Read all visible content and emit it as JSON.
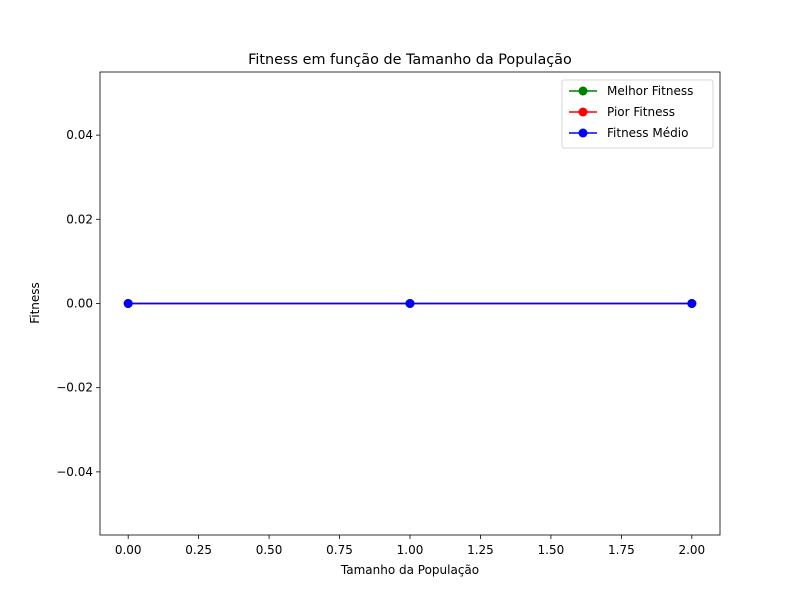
{
  "chart_data": {
    "type": "line",
    "title": "Fitness em função de Tamanho da População",
    "xlabel": "Tamanho da População",
    "ylabel": "Fitness",
    "xlim": [
      -0.1,
      2.1
    ],
    "ylim": [
      -0.055,
      0.055
    ],
    "x_ticks": [
      0.0,
      0.25,
      0.5,
      0.75,
      1.0,
      1.25,
      1.5,
      1.75,
      2.0
    ],
    "x_tick_labels": [
      "0.00",
      "0.25",
      "0.50",
      "0.75",
      "1.00",
      "1.25",
      "1.50",
      "1.75",
      "2.00"
    ],
    "y_ticks": [
      -0.04,
      -0.02,
      0.0,
      0.02,
      0.04
    ],
    "y_tick_labels": [
      "−0.04",
      "−0.02",
      "0.00",
      "0.02",
      "0.04"
    ],
    "grid": false,
    "legend_position": "top-right",
    "x": [
      0,
      1,
      2
    ],
    "series": [
      {
        "name": "Melhor Fitness",
        "color": "#008000",
        "values": [
          0,
          0,
          0
        ]
      },
      {
        "name": "Pior Fitness",
        "color": "#ff0000",
        "values": [
          0,
          0,
          0
        ]
      },
      {
        "name": "Fitness Médio",
        "color": "#0000ff",
        "values": [
          0,
          0,
          0
        ]
      }
    ]
  }
}
